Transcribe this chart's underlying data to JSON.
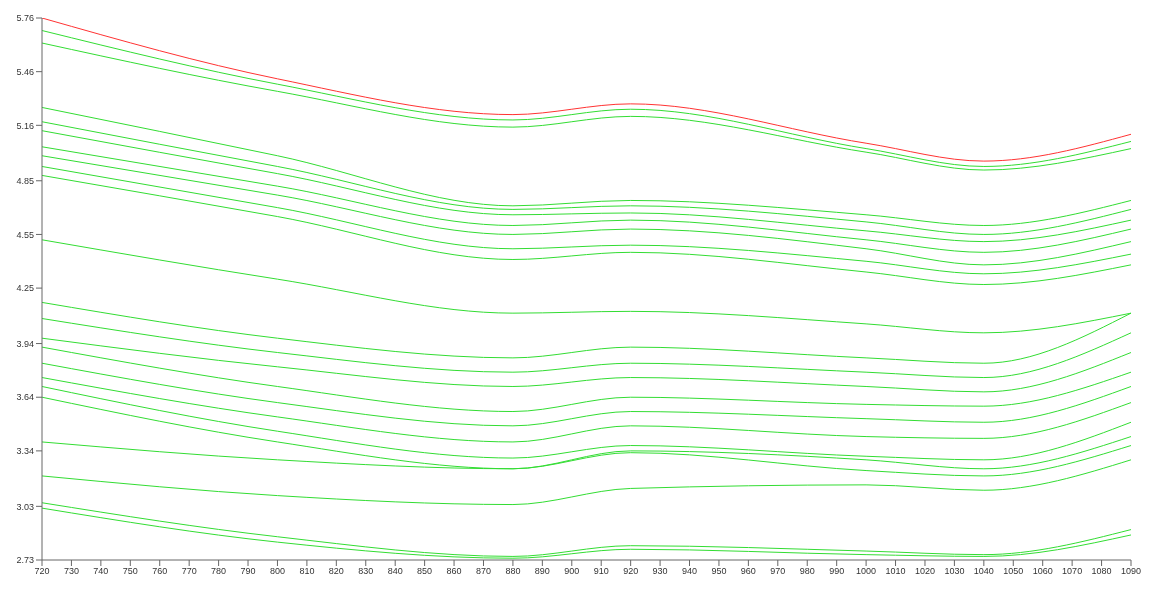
{
  "chart_data": {
    "type": "line",
    "x": [
      720,
      800,
      880,
      920,
      1000,
      1040,
      1090
    ],
    "xlim": [
      720,
      1090
    ],
    "xticks": [
      720,
      730,
      740,
      750,
      760,
      770,
      780,
      790,
      800,
      810,
      820,
      830,
      840,
      850,
      860,
      870,
      880,
      890,
      900,
      910,
      920,
      930,
      940,
      950,
      960,
      970,
      980,
      990,
      1000,
      1010,
      1020,
      1030,
      1040,
      1050,
      1060,
      1070,
      1080,
      1090
    ],
    "ylim": [
      2.73,
      5.76
    ],
    "yticks": [
      2.73,
      3.03,
      3.34,
      3.64,
      3.94,
      4.25,
      4.55,
      4.85,
      5.16,
      5.46,
      5.76
    ],
    "series": [
      {
        "color": "#ff3333",
        "values": [
          5.76,
          5.42,
          5.22,
          5.28,
          5.06,
          4.96,
          5.11
        ]
      },
      {
        "color": "#33dd33",
        "values": [
          5.69,
          5.39,
          5.19,
          5.25,
          5.03,
          4.93,
          5.07
        ]
      },
      {
        "color": "#33dd33",
        "values": [
          5.62,
          5.35,
          5.15,
          5.21,
          5.01,
          4.91,
          5.03
        ]
      },
      {
        "color": "#33dd33",
        "values": [
          5.26,
          4.99,
          4.71,
          4.74,
          4.66,
          4.6,
          4.74
        ]
      },
      {
        "color": "#33dd33",
        "values": [
          5.18,
          4.93,
          4.69,
          4.71,
          4.62,
          4.55,
          4.69
        ]
      },
      {
        "color": "#33dd33",
        "values": [
          5.13,
          4.89,
          4.66,
          4.67,
          4.57,
          4.51,
          4.63
        ]
      },
      {
        "color": "#33dd33",
        "values": [
          5.04,
          4.82,
          4.6,
          4.63,
          4.52,
          4.45,
          4.58
        ]
      },
      {
        "color": "#33dd33",
        "values": [
          4.99,
          4.77,
          4.55,
          4.58,
          4.47,
          4.38,
          4.51
        ]
      },
      {
        "color": "#33dd33",
        "values": [
          4.93,
          4.7,
          4.47,
          4.49,
          4.4,
          4.33,
          4.44
        ]
      },
      {
        "color": "#33dd33",
        "values": [
          4.88,
          4.65,
          4.41,
          4.45,
          4.34,
          4.27,
          4.38
        ]
      },
      {
        "color": "#33dd33",
        "values": [
          4.52,
          4.3,
          4.11,
          4.12,
          4.05,
          4.0,
          4.11
        ]
      },
      {
        "color": "#33dd33",
        "values": [
          4.17,
          3.97,
          3.86,
          3.92,
          3.86,
          3.83,
          4.11
        ]
      },
      {
        "color": "#33dd33",
        "values": [
          4.08,
          3.89,
          3.78,
          3.83,
          3.78,
          3.75,
          4.0
        ]
      },
      {
        "color": "#33dd33",
        "values": [
          3.97,
          3.81,
          3.7,
          3.75,
          3.7,
          3.67,
          3.89
        ]
      },
      {
        "color": "#33dd33",
        "values": [
          3.92,
          3.7,
          3.56,
          3.64,
          3.6,
          3.59,
          3.78
        ]
      },
      {
        "color": "#33dd33",
        "values": [
          3.83,
          3.61,
          3.48,
          3.56,
          3.52,
          3.5,
          3.7
        ]
      },
      {
        "color": "#33dd33",
        "values": [
          3.75,
          3.53,
          3.39,
          3.48,
          3.42,
          3.41,
          3.61
        ]
      },
      {
        "color": "#33dd33",
        "values": [
          3.7,
          3.45,
          3.3,
          3.37,
          3.31,
          3.29,
          3.5
        ]
      },
      {
        "color": "#33dd33",
        "values": [
          3.64,
          3.39,
          3.24,
          3.33,
          3.23,
          3.2,
          3.37
        ]
      },
      {
        "color": "#33dd33",
        "values": [
          3.39,
          3.29,
          3.24,
          3.34,
          3.29,
          3.24,
          3.42
        ]
      },
      {
        "color": "#33dd33",
        "values": [
          3.2,
          3.09,
          3.04,
          3.13,
          3.15,
          3.12,
          3.29
        ]
      },
      {
        "color": "#33dd33",
        "values": [
          3.05,
          2.86,
          2.75,
          2.81,
          2.78,
          2.76,
          2.9
        ]
      },
      {
        "color": "#33dd33",
        "values": [
          3.02,
          2.83,
          2.74,
          2.79,
          2.76,
          2.75,
          2.87
        ]
      }
    ]
  }
}
